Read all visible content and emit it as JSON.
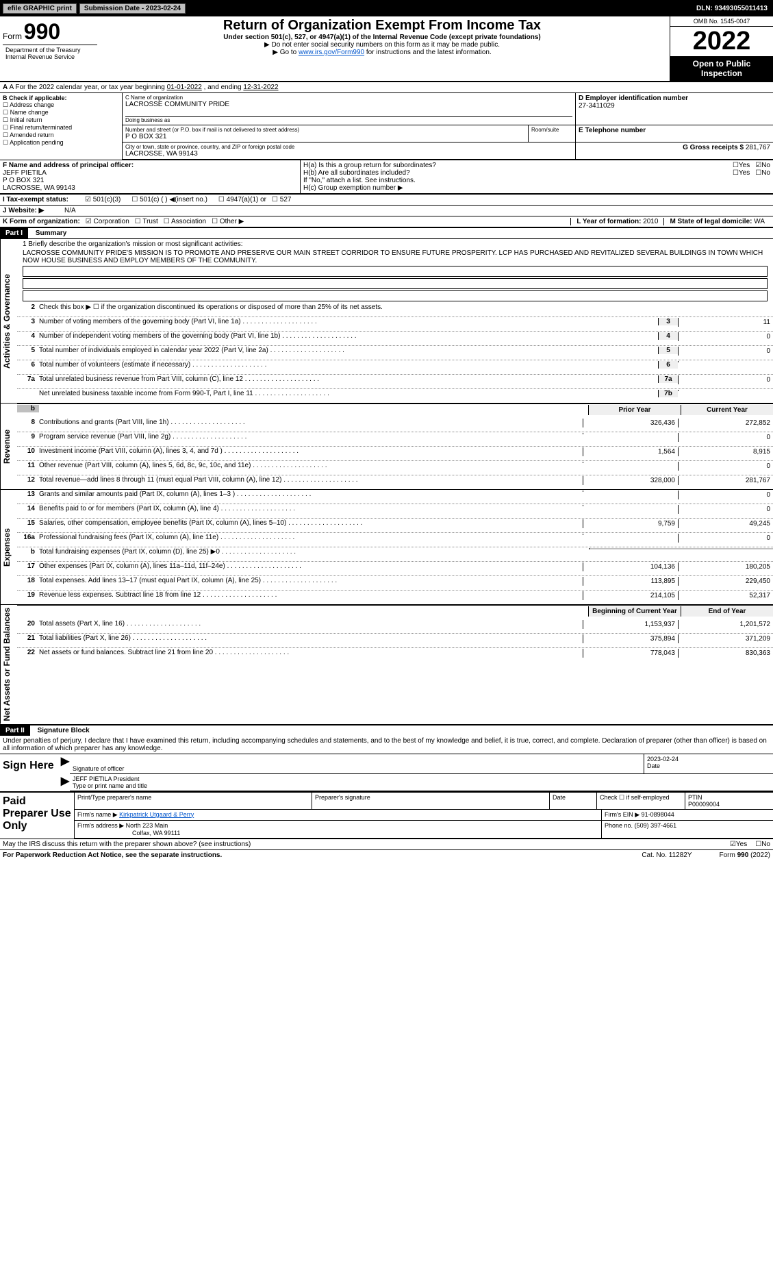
{
  "topbar": {
    "efile": "efile GRAPHIC print",
    "subdate_label": "Submission Date - 2023-02-24",
    "dln_label": "DLN: 93493055011413"
  },
  "header": {
    "form_word": "Form",
    "form_num": "990",
    "title": "Return of Organization Exempt From Income Tax",
    "sub": "Under section 501(c), 527, or 4947(a)(1) of the Internal Revenue Code (except private foundations)",
    "note1": "▶ Do not enter social security numbers on this form as it may be made public.",
    "note2_pre": "▶ Go to ",
    "note2_link": "www.irs.gov/Form990",
    "note2_post": " for instructions and the latest information.",
    "omb": "OMB No. 1545-0047",
    "year": "2022",
    "open": "Open to Public Inspection",
    "dept": "Department of the Treasury",
    "irs": "Internal Revenue Service"
  },
  "A": {
    "text_pre": "A For the 2022 calendar year, or tax year beginning ",
    "beg": "01-01-2022",
    "mid": " , and ending ",
    "end": "12-31-2022"
  },
  "B": {
    "label": "B Check if applicable:",
    "items": [
      "Address change",
      "Name change",
      "Initial return",
      "Final return/terminated",
      "Amended return",
      "Application pending"
    ]
  },
  "C": {
    "name_label": "C Name of organization",
    "name": "LACROSSE COMMUNITY PRIDE",
    "dba_label": "Doing business as",
    "street_label": "Number and street (or P.O. box if mail is not delivered to street address)",
    "room_label": "Room/suite",
    "street": "P O BOX 321",
    "city_label": "City or town, state or province, country, and ZIP or foreign postal code",
    "city": "LACROSSE, WA  99143"
  },
  "D": {
    "label": "D Employer identification number",
    "ein": "27-3411029"
  },
  "E": {
    "label": "E Telephone number",
    "val": ""
  },
  "G": {
    "label": "G Gross receipts $",
    "val": "281,767"
  },
  "F": {
    "label": "F Name and address of principal officer:",
    "name": "JEFF PIETILA",
    "addr1": "P O BOX 321",
    "addr2": "LACROSSE, WA  99143"
  },
  "H": {
    "a": "H(a) Is this a group return for subordinates?",
    "a_yes": "Yes",
    "a_no": "No",
    "b": "H(b) Are all subordinates included?",
    "b_note": "If \"No,\" attach a list. See instructions.",
    "c": "H(c) Group exemption number ▶"
  },
  "I": {
    "label": "I Tax-exempt status:",
    "o1": "501(c)(3)",
    "o2": "501(c) ( ) ◀(insert no.)",
    "o3": "4947(a)(1) or",
    "o4": "527"
  },
  "J": {
    "label": "J Website: ▶",
    "val": "N/A"
  },
  "K": {
    "label": "K Form of organization:",
    "opts": [
      "Corporation",
      "Trust",
      "Association",
      "Other ▶"
    ]
  },
  "L": {
    "label": "L Year of formation:",
    "val": "2010"
  },
  "M": {
    "label": "M State of legal domicile:",
    "val": "WA"
  },
  "part1": {
    "hdr": "Part I",
    "title": "Summary",
    "q1": "1 Briefly describe the organization's mission or most significant activities:",
    "mission": "LACROSSE COMMUNITY PRIDE'S MISSION IS TO PROMOTE AND PRESERVE OUR MAIN STREET CORRIDOR TO ENSURE FUTURE PROSPERITY. LCP HAS PURCHASED AND REVITALIZED SEVERAL BUILDINGS IN TOWN WHICH NOW HOUSE BUSINESS AND EMPLOY MEMBERS OF THE COMMUNITY."
  },
  "gov_lines": [
    {
      "n": "2",
      "d": "Check this box ▶ ☐ if the organization discontinued its operations or disposed of more than 25% of its net assets."
    },
    {
      "n": "3",
      "d": "Number of voting members of the governing body (Part VI, line 1a)",
      "idx": "3",
      "v": "11"
    },
    {
      "n": "4",
      "d": "Number of independent voting members of the governing body (Part VI, line 1b)",
      "idx": "4",
      "v": "0"
    },
    {
      "n": "5",
      "d": "Total number of individuals employed in calendar year 2022 (Part V, line 2a)",
      "idx": "5",
      "v": "0"
    },
    {
      "n": "6",
      "d": "Total number of volunteers (estimate if necessary)",
      "idx": "6",
      "v": ""
    },
    {
      "n": "7a",
      "d": "Total unrelated business revenue from Part VIII, column (C), line 12",
      "idx": "7a",
      "v": "0"
    },
    {
      "n": "",
      "d": "Net unrelated business taxable income from Form 990-T, Part I, line 11",
      "idx": "7b",
      "v": ""
    }
  ],
  "col_hdrs": {
    "prior": "Prior Year",
    "current": "Current Year",
    "boy": "Beginning of Current Year",
    "eoy": "End of Year"
  },
  "revenue": [
    {
      "n": "8",
      "d": "Contributions and grants (Part VIII, line 1h)",
      "p": "326,436",
      "c": "272,852"
    },
    {
      "n": "9",
      "d": "Program service revenue (Part VIII, line 2g)",
      "p": "",
      "c": "0"
    },
    {
      "n": "10",
      "d": "Investment income (Part VIII, column (A), lines 3, 4, and 7d )",
      "p": "1,564",
      "c": "8,915"
    },
    {
      "n": "11",
      "d": "Other revenue (Part VIII, column (A), lines 5, 6d, 8c, 9c, 10c, and 11e)",
      "p": "",
      "c": "0"
    },
    {
      "n": "12",
      "d": "Total revenue—add lines 8 through 11 (must equal Part VIII, column (A), line 12)",
      "p": "328,000",
      "c": "281,767"
    }
  ],
  "expenses": [
    {
      "n": "13",
      "d": "Grants and similar amounts paid (Part IX, column (A), lines 1–3 )",
      "p": "",
      "c": "0"
    },
    {
      "n": "14",
      "d": "Benefits paid to or for members (Part IX, column (A), line 4)",
      "p": "",
      "c": "0"
    },
    {
      "n": "15",
      "d": "Salaries, other compensation, employee benefits (Part IX, column (A), lines 5–10)",
      "p": "9,759",
      "c": "49,245"
    },
    {
      "n": "16a",
      "d": "Professional fundraising fees (Part IX, column (A), line 11e)",
      "p": "",
      "c": "0"
    },
    {
      "n": "b",
      "d": "Total fundraising expenses (Part IX, column (D), line 25) ▶0",
      "shade": true
    },
    {
      "n": "17",
      "d": "Other expenses (Part IX, column (A), lines 11a–11d, 11f–24e)",
      "p": "104,136",
      "c": "180,205"
    },
    {
      "n": "18",
      "d": "Total expenses. Add lines 13–17 (must equal Part IX, column (A), line 25)",
      "p": "113,895",
      "c": "229,450"
    },
    {
      "n": "19",
      "d": "Revenue less expenses. Subtract line 18 from line 12",
      "p": "214,105",
      "c": "52,317"
    }
  ],
  "netassets": [
    {
      "n": "20",
      "d": "Total assets (Part X, line 16)",
      "p": "1,153,937",
      "c": "1,201,572"
    },
    {
      "n": "21",
      "d": "Total liabilities (Part X, line 26)",
      "p": "375,894",
      "c": "371,209"
    },
    {
      "n": "22",
      "d": "Net assets or fund balances. Subtract line 21 from line 20",
      "p": "778,043",
      "c": "830,363"
    }
  ],
  "part2": {
    "hdr": "Part II",
    "title": "Signature Block",
    "pen": "Under penalties of perjury, I declare that I have examined this return, including accompanying schedules and statements, and to the best of my knowledge and belief, it is true, correct, and complete. Declaration of preparer (other than officer) is based on all information of which preparer has any knowledge."
  },
  "sign": {
    "here": "Sign Here",
    "sig_of_officer": "Signature of officer",
    "date": "Date",
    "dateval": "2023-02-24",
    "typed": "JEFF PIETILA President",
    "typed_label": "Type or print name and title"
  },
  "paid": {
    "label": "Paid Preparer Use Only",
    "r1": {
      "c1": "Print/Type preparer's name",
      "c2": "Preparer's signature",
      "c3": "Date",
      "c4": "Check ☐ if self-employed",
      "c5l": "PTIN",
      "c5": "P00009004"
    },
    "r2": {
      "l": "Firm's name ▶",
      "v": "Kirkpatrick Utgaard & Perry",
      "einl": "Firm's EIN ▶",
      "ein": "91-0898044"
    },
    "r3": {
      "l": "Firm's address ▶",
      "v1": "North 223 Main",
      "v2": "Colfax, WA  99111",
      "phl": "Phone no.",
      "ph": "(509) 397-4661"
    }
  },
  "discuss": {
    "q": "May the IRS discuss this return with the preparer shown above? (see instructions)",
    "yes": "Yes",
    "no": "No"
  },
  "footer": {
    "l": "For Paperwork Reduction Act Notice, see the separate instructions.",
    "c": "Cat. No. 11282Y",
    "r": "Form 990 (2022)"
  },
  "sidelabels": {
    "gov": "Activities & Governance",
    "rev": "Revenue",
    "exp": "Expenses",
    "net": "Net Assets or Fund Balances"
  }
}
